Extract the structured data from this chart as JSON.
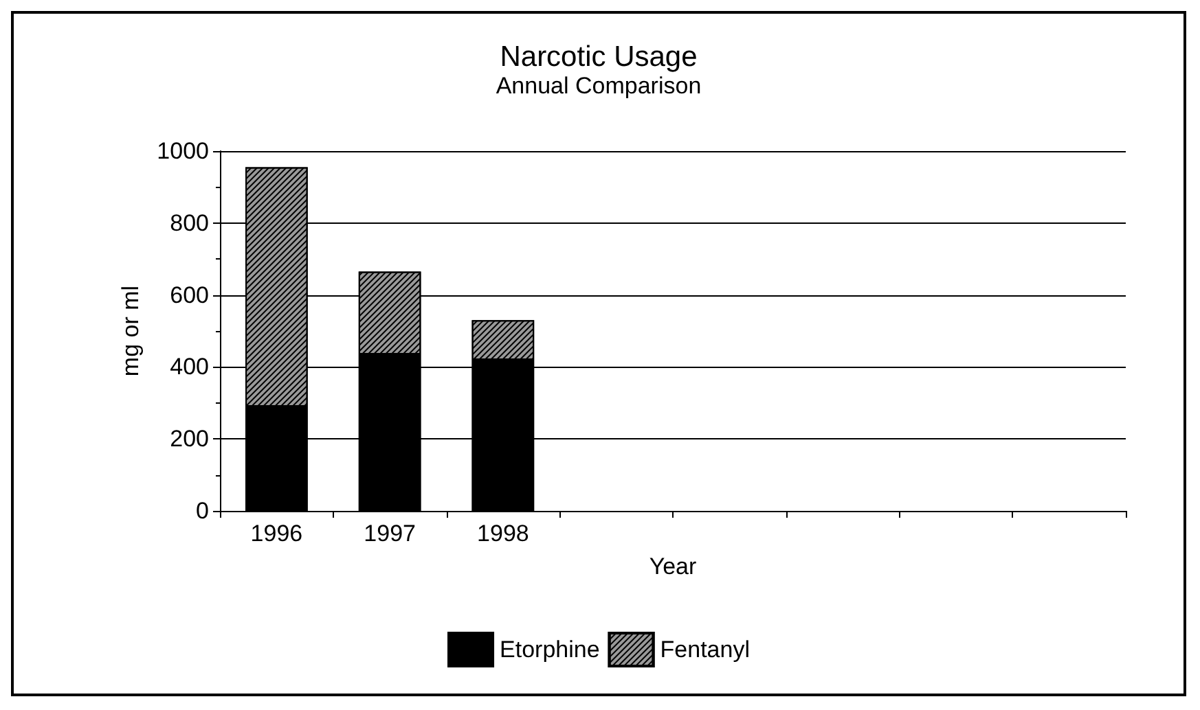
{
  "chart_data": {
    "type": "bar",
    "title": "Narcotic Usage",
    "subtitle": "Annual Comparison",
    "xlabel": "Year",
    "ylabel": "mg or ml",
    "categories": [
      "1996",
      "1997",
      "1998",
      null,
      null,
      null,
      null,
      null
    ],
    "series": [
      {
        "name": "Etorphine",
        "color": "#000000",
        "values": [
          290,
          435,
          420,
          null,
          null,
          null,
          null,
          null
        ]
      },
      {
        "name": "Fentanyl",
        "color": "#999999",
        "values": [
          665,
          230,
          110,
          null,
          null,
          null,
          null,
          null
        ]
      }
    ],
    "stacked": true,
    "ylim": [
      0,
      1000
    ],
    "yticks": [
      0,
      200,
      400,
      600,
      800,
      1000
    ],
    "grid": "y",
    "legend": "bottom"
  }
}
